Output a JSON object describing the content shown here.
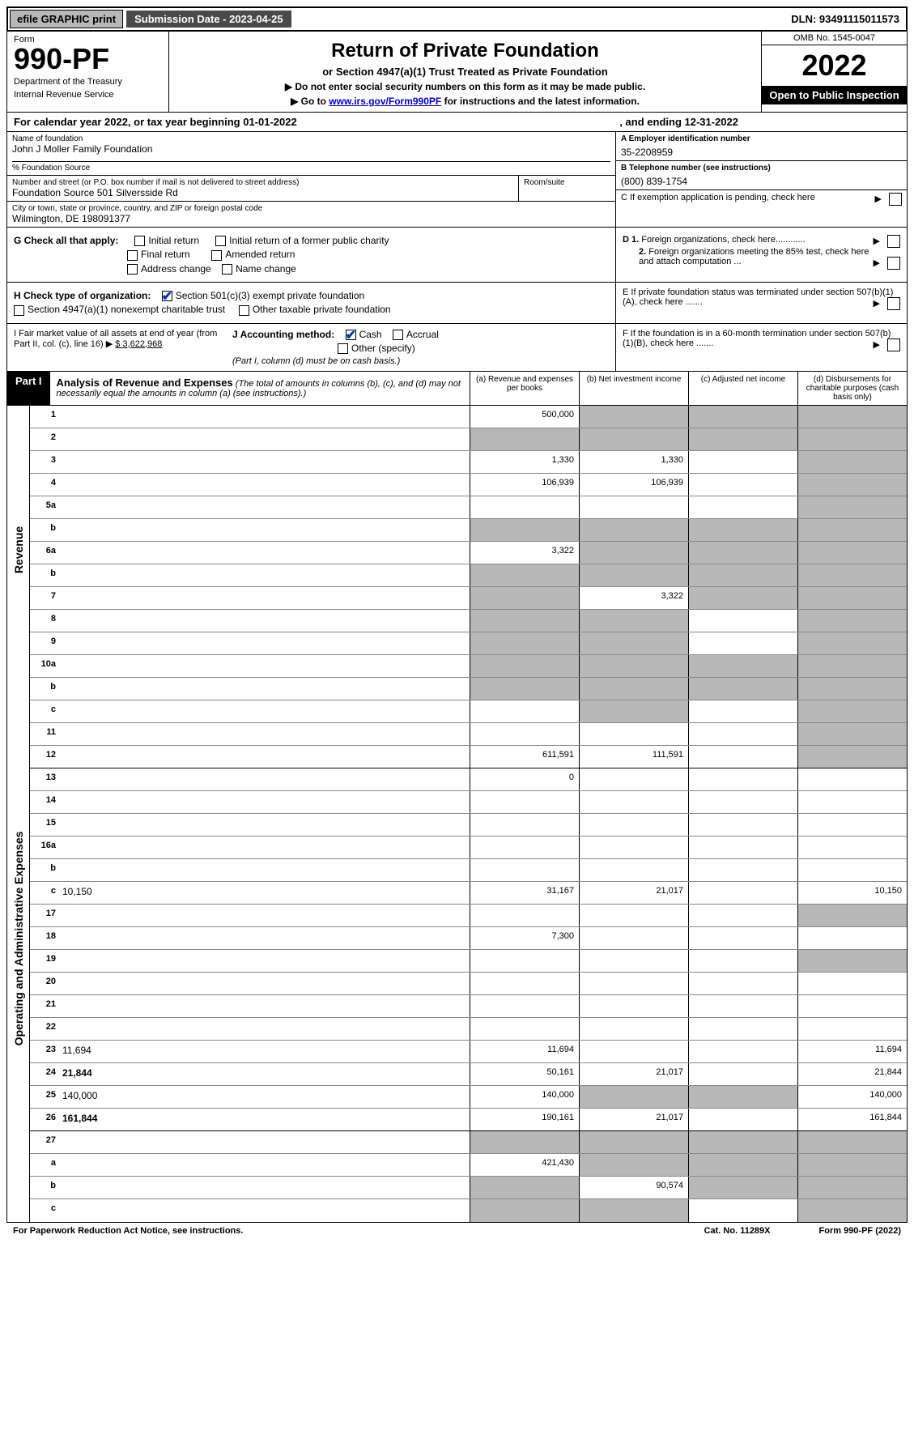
{
  "topBar": {
    "efile": "efile GRAPHIC print",
    "submissionLabel": "Submission Date - 2023-04-25",
    "dln": "DLN: 93491115011573"
  },
  "header": {
    "formLabel": "Form",
    "formNumber": "990-PF",
    "dept1": "Department of the Treasury",
    "dept2": "Internal Revenue Service",
    "title": "Return of Private Foundation",
    "subtitle": "or Section 4947(a)(1) Trust Treated as Private Foundation",
    "note1": "▶ Do not enter social security numbers on this form as it may be made public.",
    "note2": "▶ Go to ",
    "noteLink": "www.irs.gov/Form990PF",
    "note2b": " for instructions and the latest information.",
    "omb": "OMB No. 1545-0047",
    "year": "2022",
    "open": "Open to Public Inspection"
  },
  "calYear": {
    "text": "For calendar year 2022, or tax year beginning 01-01-2022",
    "ending": ", and ending 12-31-2022"
  },
  "info": {
    "nameLabel": "Name of foundation",
    "nameVal": "John J Moller Family Foundation",
    "care": "% Foundation Source",
    "addrLabel": "Number and street (or P.O. box number if mail is not delivered to street address)",
    "addrVal": "Foundation Source 501 Silversside Rd",
    "roomLabel": "Room/suite",
    "cityLabel": "City or town, state or province, country, and ZIP or foreign postal code",
    "cityVal": "Wilmington, DE  198091377",
    "aLabel": "A Employer identification number",
    "aVal": "35-2208959",
    "bLabel": "B Telephone number (see instructions)",
    "bVal": "(800) 839-1754",
    "cLabel": "C If exemption application is pending, check here",
    "d1": "D 1. Foreign organizations, check here............",
    "d2": "2. Foreign organizations meeting the 85% test, check here and attach computation ...",
    "eLabel": "E  If private foundation status was terminated under section 507(b)(1)(A), check here .......",
    "fLabel": "F  If the foundation is in a 60-month termination under section 507(b)(1)(B), check here .......",
    "gLabel": "G Check all that apply:",
    "gInitial": "Initial return",
    "gInitialFormer": "Initial return of a former public charity",
    "gFinal": "Final return",
    "gAmended": "Amended return",
    "gAddr": "Address change",
    "gName": "Name change",
    "hLabel": "H Check type of organization:",
    "h501c3": "Section 501(c)(3) exempt private foundation",
    "h4947": "Section 4947(a)(1) nonexempt charitable trust",
    "hOther": "Other taxable private foundation",
    "iLabel": "I Fair market value of all assets at end of year (from Part II, col. (c), line 16) ▶",
    "iVal": "$  3,622,968",
    "jLabel": "J Accounting method:",
    "jCash": "Cash",
    "jAccrual": "Accrual",
    "jOther": "Other (specify)",
    "jNote": "(Part I, column (d) must be on cash basis.)"
  },
  "part1": {
    "label": "Part I",
    "title": "Analysis of Revenue and Expenses",
    "titleNote": " (The total of amounts in columns (b), (c), and (d) may not necessarily equal the amounts in column (a) (see instructions).)",
    "colA": "(a)   Revenue and expenses per books",
    "colB": "(b)   Net investment income",
    "colC": "(c)   Adjusted net income",
    "colD": "(d)   Disbursements for charitable purposes (cash basis only)"
  },
  "sideLabels": {
    "revenue": "Revenue",
    "expenses": "Operating and Administrative Expenses"
  },
  "rows": [
    {
      "n": "1",
      "d": null,
      "a": "500,000",
      "b": null,
      "c": null,
      "bShade": true,
      "cShade": true,
      "dShade": true
    },
    {
      "n": "2",
      "d": null,
      "a": null,
      "b": null,
      "c": null,
      "bShade": true,
      "cShade": true,
      "dShade": true,
      "noA": true
    },
    {
      "n": "3",
      "d": null,
      "a": "1,330",
      "b": "1,330",
      "c": "",
      "dShade": true
    },
    {
      "n": "4",
      "d": null,
      "a": "106,939",
      "b": "106,939",
      "c": "",
      "dShade": true
    },
    {
      "n": "5a",
      "d": null,
      "a": "",
      "b": "",
      "c": "",
      "dShade": true
    },
    {
      "n": "b",
      "d": null,
      "a": null,
      "b": null,
      "c": null,
      "aShade": true,
      "bShade": true,
      "cShade": true,
      "dShade": true,
      "inline": true
    },
    {
      "n": "6a",
      "d": null,
      "a": "3,322",
      "b": null,
      "c": null,
      "bShade": true,
      "cShade": true,
      "dShade": true
    },
    {
      "n": "b",
      "d": null,
      "a": null,
      "b": null,
      "c": null,
      "aShade": true,
      "bShade": true,
      "cShade": true,
      "dShade": true,
      "inline": true
    },
    {
      "n": "7",
      "d": null,
      "a": null,
      "b": "3,322",
      "c": null,
      "aShade": true,
      "cShade": true,
      "dShade": true
    },
    {
      "n": "8",
      "d": null,
      "a": null,
      "b": null,
      "c": "",
      "aShade": true,
      "bShade": true,
      "dShade": true
    },
    {
      "n": "9",
      "d": null,
      "a": null,
      "b": null,
      "c": "",
      "aShade": true,
      "bShade": true,
      "dShade": true
    },
    {
      "n": "10a",
      "d": null,
      "a": null,
      "b": null,
      "c": null,
      "aShade": true,
      "bShade": true,
      "cShade": true,
      "dShade": true,
      "inline": true
    },
    {
      "n": "b",
      "d": null,
      "a": null,
      "b": null,
      "c": null,
      "aShade": true,
      "bShade": true,
      "cShade": true,
      "dShade": true,
      "inline": true
    },
    {
      "n": "c",
      "d": null,
      "a": "",
      "b": null,
      "c": "",
      "bShade": true,
      "dShade": true
    },
    {
      "n": "11",
      "d": null,
      "a": "",
      "b": "",
      "c": "",
      "dShade": true
    },
    {
      "n": "12",
      "d": null,
      "a": "611,591",
      "b": "111,591",
      "c": "",
      "dShade": true,
      "bold": true,
      "heavy": true
    },
    {
      "n": "13",
      "d": "",
      "a": "0",
      "b": "",
      "c": ""
    },
    {
      "n": "14",
      "d": "",
      "a": "",
      "b": "",
      "c": ""
    },
    {
      "n": "15",
      "d": "",
      "a": "",
      "b": "",
      "c": ""
    },
    {
      "n": "16a",
      "d": "",
      "a": "",
      "b": "",
      "c": ""
    },
    {
      "n": "b",
      "d": "",
      "a": "",
      "b": "",
      "c": ""
    },
    {
      "n": "c",
      "d": "10,150",
      "a": "31,167",
      "b": "21,017",
      "c": ""
    },
    {
      "n": "17",
      "d": null,
      "a": "",
      "b": "",
      "c": "",
      "dShade": true
    },
    {
      "n": "18",
      "d": "",
      "a": "7,300",
      "b": "",
      "c": ""
    },
    {
      "n": "19",
      "d": null,
      "a": "",
      "b": "",
      "c": "",
      "dShade": true
    },
    {
      "n": "20",
      "d": "",
      "a": "",
      "b": "",
      "c": ""
    },
    {
      "n": "21",
      "d": "",
      "a": "",
      "b": "",
      "c": ""
    },
    {
      "n": "22",
      "d": "",
      "a": "",
      "b": "",
      "c": ""
    },
    {
      "n": "23",
      "d": "11,694",
      "a": "11,694",
      "b": "",
      "c": ""
    },
    {
      "n": "24",
      "d": "21,844",
      "a": "50,161",
      "b": "21,017",
      "c": "",
      "bold": true
    },
    {
      "n": "25",
      "d": "140,000",
      "a": "140,000",
      "b": null,
      "c": null,
      "bShade": true,
      "cShade": true
    },
    {
      "n": "26",
      "d": "161,844",
      "a": "190,161",
      "b": "21,017",
      "c": "",
      "bold": true,
      "heavy": true
    },
    {
      "n": "27",
      "d": null,
      "a": null,
      "b": null,
      "c": null,
      "aShade": true,
      "bShade": true,
      "cShade": true,
      "dShade": true
    },
    {
      "n": "a",
      "d": null,
      "a": "421,430",
      "b": null,
      "c": null,
      "bShade": true,
      "cShade": true,
      "dShade": true,
      "bold": true
    },
    {
      "n": "b",
      "d": null,
      "a": null,
      "b": "90,574",
      "c": null,
      "aShade": true,
      "cShade": true,
      "dShade": true,
      "bold": true
    },
    {
      "n": "c",
      "d": null,
      "a": null,
      "b": null,
      "c": "",
      "aShade": true,
      "bShade": true,
      "dShade": true,
      "bold": true
    }
  ],
  "footer": {
    "left": "For Paperwork Reduction Act Notice, see instructions.",
    "mid": "Cat. No. 11289X",
    "right": "Form 990-PF (2022)"
  }
}
